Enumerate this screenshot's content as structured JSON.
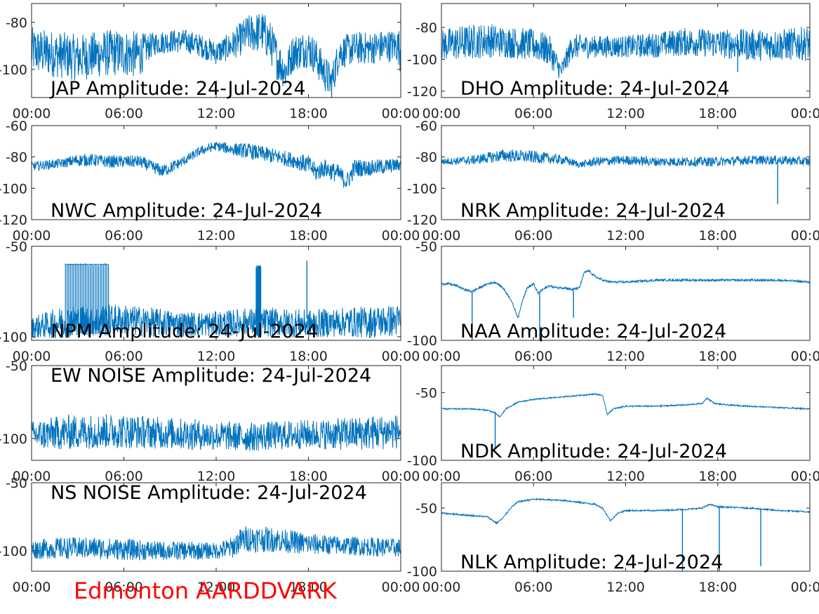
{
  "figure": {
    "footer_text": "Edmonton AARDDVARK",
    "footer_color": "#ff0000",
    "line_color": "#0072bd"
  },
  "chart_data": [
    {
      "type": "line",
      "title": "JAP Amplitude: 24-Jul-2024",
      "xlabel": "",
      "ylabel": "",
      "x_range": [
        "00:00",
        "24:00"
      ],
      "xticks": [
        "00:00",
        "06:00",
        "12:00",
        "18:00",
        "00:00"
      ],
      "ylim": [
        -112,
        -72
      ],
      "yticks": [
        -80,
        -100
      ],
      "ytick_labels": [
        "-80",
        "-100"
      ],
      "grid": false,
      "series": [
        {
          "x_hours": [
            0,
            1,
            2,
            3,
            4,
            5,
            6,
            7,
            7.5,
            8,
            9,
            10,
            11,
            12,
            13,
            14,
            15,
            15.5,
            16,
            16.5,
            17,
            18,
            18.5,
            19,
            19.5,
            20,
            21,
            22,
            23,
            23.8,
            24
          ],
          "y": [
            -92,
            -93,
            -94,
            -95,
            -94,
            -93,
            -93,
            -94,
            -91,
            -89,
            -88,
            -88,
            -90,
            -93,
            -90,
            -85,
            -84,
            -88,
            -96,
            -101,
            -93,
            -91,
            -95,
            -101,
            -106,
            -93,
            -91,
            -91,
            -90,
            -90,
            -92
          ],
          "noise": [
            10,
            10,
            10,
            10,
            10,
            10,
            10,
            10,
            6,
            5,
            5,
            5,
            5,
            5,
            6,
            8,
            9,
            9,
            9,
            8,
            8,
            8,
            8,
            8,
            8,
            7,
            7,
            7,
            7,
            7,
            10
          ]
        }
      ]
    },
    {
      "type": "line",
      "title": "DHO Amplitude: 24-Jul-2024",
      "xlabel": "",
      "ylabel": "",
      "x_range": [
        "00:00",
        "24:00"
      ],
      "xticks": [
        "00:00",
        "06:00",
        "12:00",
        "18:00",
        "00:00"
      ],
      "ylim": [
        -124,
        -65
      ],
      "yticks": [
        -80,
        -100,
        -120
      ],
      "ytick_labels": [
        "-80",
        "-100",
        "-120"
      ],
      "grid": false,
      "series": [
        {
          "x_hours": [
            0,
            1,
            2,
            3,
            4,
            5,
            6,
            7,
            7.8,
            8.5,
            10,
            12,
            14,
            16,
            18,
            20,
            22,
            24
          ],
          "y": [
            -91,
            -90,
            -89,
            -88,
            -89,
            -90,
            -91,
            -94,
            -108,
            -92,
            -92,
            -92,
            -91,
            -89,
            -90,
            -91,
            -91,
            -90
          ],
          "noise": [
            10,
            11,
            11,
            11,
            10,
            10,
            10,
            10,
            6,
            8,
            7,
            7,
            8,
            9,
            9,
            10,
            10,
            11
          ]
        }
      ]
    },
    {
      "type": "line",
      "title": "NWC Amplitude: 24-Jul-2024",
      "xlabel": "",
      "ylabel": "",
      "x_range": [
        "00:00",
        "24:00"
      ],
      "xticks": [
        "00:00",
        "06:00",
        "12:00",
        "18:00",
        "00:00"
      ],
      "ylim": [
        -120,
        -60
      ],
      "yticks": [
        -60,
        -80,
        -100,
        -120
      ],
      "ytick_labels": [
        "-60",
        "-80",
        "-100",
        "-120"
      ],
      "grid": false,
      "series": [
        {
          "x_hours": [
            0,
            1,
            2,
            3,
            4,
            5,
            6,
            7,
            8,
            8.5,
            9,
            10,
            11,
            12,
            13,
            14,
            15,
            16,
            17,
            18,
            18.5,
            19,
            20,
            20.5,
            21,
            22,
            23,
            24
          ],
          "y": [
            -86,
            -85,
            -84,
            -82,
            -82,
            -83,
            -83,
            -83,
            -87,
            -89,
            -87,
            -82,
            -76,
            -73,
            -75,
            -76,
            -78,
            -80,
            -82,
            -85,
            -90,
            -87,
            -91,
            -96,
            -87,
            -87,
            -86,
            -85
          ],
          "noise": [
            3,
            3,
            3,
            4,
            4,
            4,
            4,
            4,
            4,
            4,
            4,
            3,
            3,
            3,
            4,
            5,
            5,
            5,
            5,
            6,
            6,
            6,
            6,
            6,
            6,
            5,
            5,
            4
          ]
        }
      ]
    },
    {
      "type": "line",
      "title": "NRK Amplitude: 24-Jul-2024",
      "xlabel": "",
      "ylabel": "",
      "x_range": [
        "00:00",
        "24:00"
      ],
      "xticks": [
        "00:00",
        "06:00",
        "12:00",
        "18:00",
        "00:00"
      ],
      "ylim": [
        -120,
        -60
      ],
      "yticks": [
        -60,
        -80,
        -100,
        -120
      ],
      "ytick_labels": [
        "-60",
        "-80",
        "-100",
        "-120"
      ],
      "grid": false,
      "series": [
        {
          "x_hours": [
            0,
            2,
            4,
            6,
            8,
            9,
            10,
            12,
            14,
            16,
            18,
            20,
            22,
            24
          ],
          "y": [
            -83,
            -82,
            -79,
            -80,
            -82,
            -85,
            -83,
            -82,
            -83,
            -83,
            -83,
            -82,
            -82,
            -83
          ],
          "noise": [
            2,
            3,
            4,
            4,
            3,
            2,
            3,
            3,
            3,
            3,
            3,
            3,
            3,
            3
          ]
        }
      ]
    },
    {
      "type": "line",
      "title": "NPM Amplitude: 24-Jul-2024",
      "xlabel": "",
      "ylabel": "",
      "x_range": [
        "00:00",
        "24:00"
      ],
      "xticks": [
        "00:00",
        "06:00",
        "12:00",
        "18:00",
        "00:00"
      ],
      "ylim": [
        -102,
        -50
      ],
      "yticks": [
        -50,
        -100
      ],
      "ytick_labels": [
        "-50",
        "-100"
      ],
      "grid": false,
      "series": [
        {
          "x_hours": [
            0,
            2,
            4,
            6,
            8,
            10,
            12,
            14,
            16,
            18,
            20,
            22,
            24
          ],
          "y": [
            -95,
            -92,
            -91,
            -91,
            -92,
            -93,
            -93,
            -92,
            -92,
            -93,
            -92,
            -92,
            -91
          ],
          "noise": [
            6,
            9,
            9,
            9,
            8,
            7,
            7,
            8,
            8,
            8,
            8,
            9,
            9
          ]
        }
      ]
    },
    {
      "type": "line",
      "title": "NAA Amplitude: 24-Jul-2024",
      "xlabel": "",
      "ylabel": "",
      "x_range": [
        "00:00",
        "24:00"
      ],
      "xticks": [
        "00:00",
        "06:00",
        "12:00",
        "18:00",
        "00:00"
      ],
      "ylim": [
        -100,
        -50
      ],
      "yticks": [
        -50,
        -100
      ],
      "ytick_labels": [
        "-50",
        "-100"
      ],
      "grid": false,
      "series": [
        {
          "x_hours": [
            0,
            0.5,
            1,
            1.5,
            2,
            2.5,
            3,
            3.5,
            4,
            4.5,
            5,
            5.3,
            5.6,
            6,
            6.3,
            6.6,
            7,
            7.5,
            8,
            8.5,
            9,
            9.3,
            9.6,
            10,
            10.5,
            11,
            12,
            14,
            16,
            18,
            20,
            22,
            24
          ],
          "y": [
            -70,
            -70,
            -71,
            -73,
            -74,
            -72,
            -70,
            -69,
            -72,
            -78,
            -88,
            -78,
            -72,
            -70,
            -75,
            -73,
            -71,
            -72,
            -72,
            -73,
            -72,
            -64,
            -63,
            -66,
            -68,
            -69,
            -69,
            -68,
            -68,
            -68,
            -68,
            -68,
            -69
          ],
          "noise": [
            0.6,
            0.6,
            0.6,
            0.6,
            0.6,
            0.6,
            0.6,
            0.6,
            0.6,
            0.6,
            0.6,
            0.6,
            0.6,
            0.6,
            0.6,
            0.6,
            0.6,
            0.6,
            0.6,
            0.6,
            0.6,
            0.6,
            0.6,
            0.6,
            0.6,
            0.6,
            0.6,
            0.6,
            0.6,
            0.6,
            0.6,
            0.6,
            0.6
          ]
        }
      ]
    },
    {
      "type": "line",
      "title": "EW NOISE Amplitude: 24-Jul-2024",
      "xlabel": "",
      "ylabel": "",
      "x_range": [
        "00:00",
        "24:00"
      ],
      "xticks": [
        "00:00",
        "06:00",
        "12:00",
        "18:00",
        "00:00"
      ],
      "ylim": [
        -115,
        -50
      ],
      "yticks": [
        -50,
        -100
      ],
      "ytick_labels": [
        "-50",
        "-100"
      ],
      "grid": false,
      "series": [
        {
          "x_hours": [
            0,
            2,
            4,
            6,
            8,
            10,
            12,
            14,
            16,
            18,
            20,
            22,
            24
          ],
          "y": [
            -98,
            -96,
            -95,
            -95,
            -96,
            -97,
            -98,
            -99,
            -98,
            -97,
            -97,
            -96,
            -95
          ],
          "noise": [
            10,
            12,
            12,
            12,
            11,
            11,
            10,
            10,
            10,
            10,
            11,
            12,
            12
          ]
        }
      ]
    },
    {
      "type": "line",
      "title": "NDK Amplitude: 24-Jul-2024",
      "xlabel": "",
      "ylabel": "",
      "x_range": [
        "00:00",
        "24:00"
      ],
      "xticks": [
        "00:00",
        "06:00",
        "12:00",
        "18:00",
        "00:00"
      ],
      "ylim": [
        -100,
        -30
      ],
      "yticks": [
        -50,
        -100
      ],
      "ytick_labels": [
        "-50",
        "-100"
      ],
      "grid": false,
      "series": [
        {
          "x_hours": [
            0,
            1,
            2,
            3,
            3.5,
            3.8,
            4.2,
            5,
            6,
            8,
            10,
            10.5,
            10.8,
            11.2,
            12,
            14,
            16,
            17,
            17.3,
            17.8,
            18.5,
            20,
            22,
            24
          ],
          "y": [
            -62,
            -62,
            -62,
            -63,
            -65,
            -68,
            -62,
            -57,
            -55,
            -53,
            -51,
            -52,
            -66,
            -62,
            -60,
            -60,
            -59,
            -58,
            -54,
            -58,
            -59,
            -60,
            -61,
            -62
          ],
          "noise": [
            0.5,
            0.5,
            0.5,
            0.5,
            0.5,
            0.5,
            0.5,
            0.5,
            0.5,
            0.5,
            0.5,
            0.5,
            0.5,
            0.5,
            0.5,
            0.5,
            0.5,
            0.5,
            0.5,
            0.5,
            0.5,
            0.5,
            0.5,
            0.5
          ]
        }
      ]
    },
    {
      "type": "line",
      "title": "NS NOISE Amplitude: 24-Jul-2024",
      "xlabel": "",
      "ylabel": "",
      "x_range": [
        "00:00",
        "24:00"
      ],
      "xticks": [
        "00:00",
        "06:00",
        "12:00",
        "18:00",
        "00:00"
      ],
      "ylim": [
        -115,
        -50
      ],
      "yticks": [
        -50,
        -100
      ],
      "ytick_labels": [
        "-50",
        "-100"
      ],
      "grid": false,
      "series": [
        {
          "x_hours": [
            0,
            2,
            4,
            6,
            8,
            10,
            12,
            13,
            13.5,
            14,
            16,
            18,
            20,
            22,
            24
          ],
          "y": [
            -99,
            -98,
            -98,
            -99,
            -100,
            -100,
            -100,
            -98,
            -93,
            -91,
            -92,
            -95,
            -96,
            -97,
            -98
          ],
          "noise": [
            7,
            8,
            8,
            8,
            7,
            7,
            6,
            8,
            9,
            10,
            9,
            8,
            7,
            7,
            7
          ]
        }
      ]
    },
    {
      "type": "line",
      "title": "NLK Amplitude: 24-Jul-2024",
      "xlabel": "",
      "ylabel": "",
      "x_range": [
        "00:00",
        "24:00"
      ],
      "xticks": [
        "00:00",
        "06:00",
        "12:00",
        "18:00",
        "00:00"
      ],
      "ylim": [
        -100,
        -30
      ],
      "yticks": [
        -50,
        -100
      ],
      "ytick_labels": [
        "-50",
        "-100"
      ],
      "grid": false,
      "series": [
        {
          "x_hours": [
            0,
            1,
            2,
            3,
            3.6,
            4,
            4.5,
            5,
            6,
            8,
            10,
            10.5,
            11,
            11.5,
            12,
            14,
            16,
            17,
            17.5,
            18,
            20,
            22,
            24
          ],
          "y": [
            -54,
            -55,
            -56,
            -57,
            -62,
            -58,
            -50,
            -45,
            -43,
            -44,
            -47,
            -50,
            -60,
            -54,
            -52,
            -52,
            -51,
            -50,
            -47,
            -49,
            -50,
            -52,
            -53
          ],
          "noise": [
            0.6,
            0.6,
            0.6,
            0.6,
            0.6,
            0.6,
            0.6,
            0.6,
            0.6,
            0.6,
            0.6,
            0.6,
            0.6,
            0.6,
            0.6,
            0.6,
            0.6,
            0.6,
            0.6,
            0.6,
            0.6,
            0.6,
            0.6
          ]
        }
      ]
    }
  ]
}
